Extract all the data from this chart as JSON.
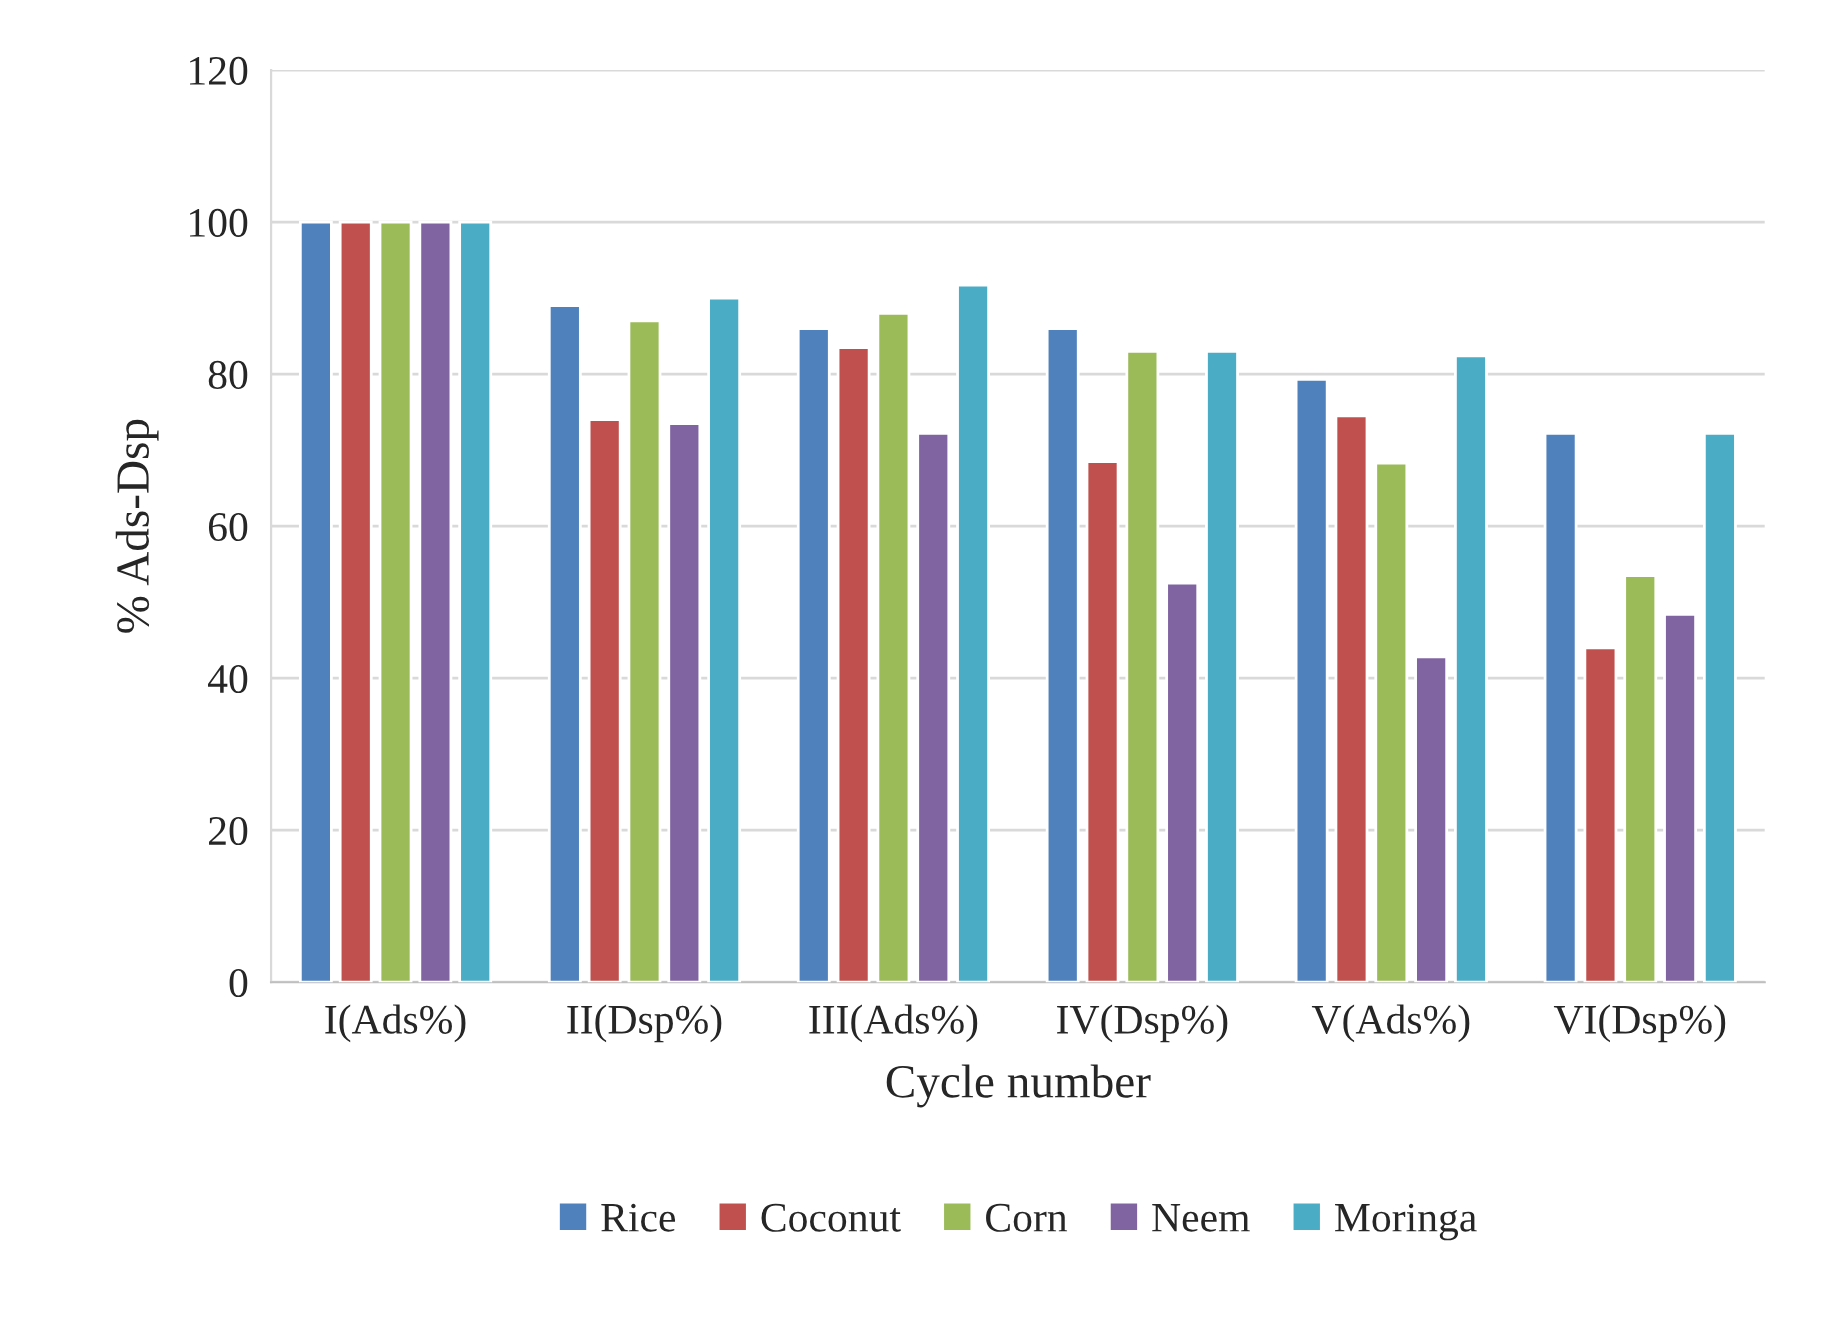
{
  "chart_data": {
    "type": "bar",
    "xlabel": "Cycle number",
    "ylabel": "% Ads-Dsp",
    "categories": [
      "I(Ads%)",
      "II(Dsp%)",
      "III(Ads%)",
      "IV(Dsp%)",
      "V(Ads%)",
      "VI(Dsp%)"
    ],
    "series": [
      {
        "name": "Rice",
        "color": "#4f81bd",
        "values": [
          100,
          89,
          86,
          86,
          79.3,
          72.2
        ]
      },
      {
        "name": "Coconut",
        "color": "#c0504d",
        "values": [
          100,
          74,
          83.5,
          68.5,
          74.5,
          44
        ]
      },
      {
        "name": "Corn",
        "color": "#9bbb59",
        "values": [
          100,
          87,
          88,
          83,
          68.3,
          53.5
        ]
      },
      {
        "name": "Neem",
        "color": "#8064a2",
        "values": [
          100,
          73.5,
          72.2,
          52.5,
          42.8,
          48.4
        ]
      },
      {
        "name": "Moringa",
        "color": "#4bacc6",
        "values": [
          100,
          90,
          91.7,
          83,
          82.4,
          72.2
        ]
      }
    ],
    "ylim": [
      0,
      120
    ],
    "yticks": [
      0,
      20,
      40,
      60,
      80,
      100,
      120
    ],
    "grid": "y",
    "legend": "bottom"
  }
}
